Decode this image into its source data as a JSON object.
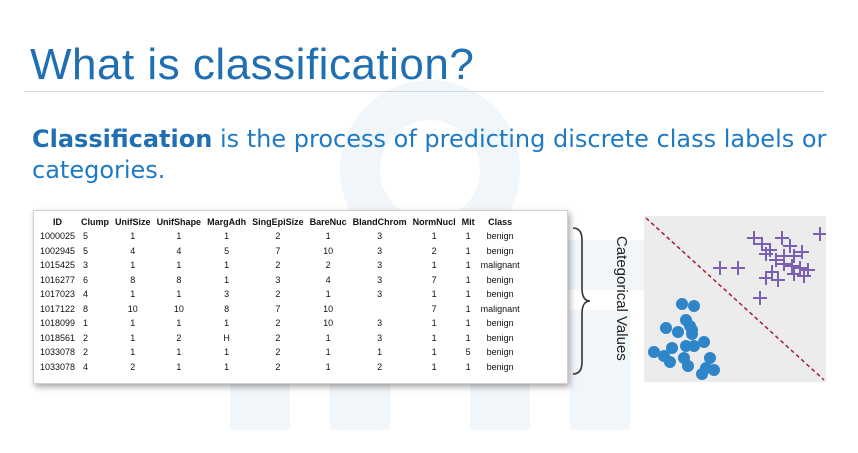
{
  "slide": {
    "title": "What is classification?",
    "subtitle_bold": "Classification",
    "subtitle_rest": " is the process of predicting discrete class labels or categories."
  },
  "table": {
    "headers": [
      "ID",
      "Clump",
      "UnifSize",
      "UnifShape",
      "MargAdh",
      "SingEpiSize",
      "BareNuc",
      "BlandChrom",
      "NormNucl",
      "Mit",
      "Class"
    ],
    "rows": [
      [
        "1000025",
        "5",
        "1",
        "1",
        "1",
        "2",
        "1",
        "3",
        "1",
        "1",
        "benign"
      ],
      [
        "1002945",
        "5",
        "4",
        "4",
        "5",
        "7",
        "10",
        "3",
        "2",
        "1",
        "benign"
      ],
      [
        "1015425",
        "3",
        "1",
        "1",
        "1",
        "2",
        "2",
        "3",
        "1",
        "1",
        "malignant"
      ],
      [
        "1016277",
        "6",
        "8",
        "8",
        "1",
        "3",
        "4",
        "3",
        "7",
        "1",
        "benign"
      ],
      [
        "1017023",
        "4",
        "1",
        "1",
        "3",
        "2",
        "1",
        "3",
        "1",
        "1",
        "benign"
      ],
      [
        "1017122",
        "8",
        "10",
        "10",
        "8",
        "7",
        "10",
        "",
        "7",
        "1",
        "malignant"
      ],
      [
        "1018099",
        "1",
        "1",
        "1",
        "1",
        "2",
        "10",
        "3",
        "1",
        "1",
        "benign"
      ],
      [
        "1018561",
        "2",
        "1",
        "2",
        "H",
        "2",
        "1",
        "3",
        "1",
        "1",
        "benign"
      ],
      [
        "1033078",
        "2",
        "1",
        "1",
        "1",
        "2",
        "1",
        "1",
        "1",
        "5",
        "benign"
      ],
      [
        "1033078",
        "4",
        "2",
        "1",
        "1",
        "2",
        "1",
        "2",
        "1",
        "1",
        "benign"
      ]
    ]
  },
  "side_label": "Categorical Values",
  "colors": {
    "title": "#1f6fb2",
    "dots": "#2e86c8",
    "crosses": "#7b5fb0",
    "divider": "#a0213a",
    "plot_bg": "#ececec"
  }
}
